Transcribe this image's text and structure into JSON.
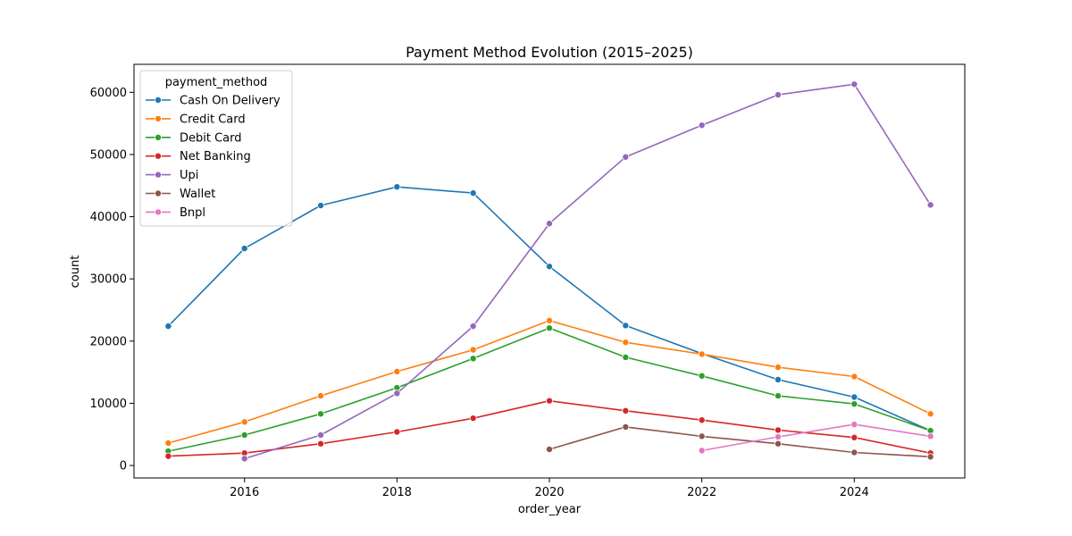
{
  "chart_data": {
    "type": "line",
    "title": "Payment Method Evolution (2015–2025)",
    "xlabel": "order_year",
    "ylabel": "count",
    "xlim": [
      2014.55,
      2025.45
    ],
    "ylim": [
      -2000,
      64500
    ],
    "x_ticks": [
      2016,
      2018,
      2020,
      2022,
      2024
    ],
    "y_ticks": [
      0,
      10000,
      20000,
      30000,
      40000,
      50000,
      60000
    ],
    "grid": false,
    "legend": {
      "title": "payment_method",
      "placement": "top-left"
    },
    "series": [
      {
        "name": "Cash On Delivery",
        "color": "#1f77b4",
        "x": [
          2015,
          2016,
          2017,
          2018,
          2019,
          2020,
          2021,
          2022,
          2023,
          2024,
          2025
        ],
        "values": [
          22400,
          34900,
          41800,
          44800,
          43800,
          32000,
          22500,
          18000,
          13800,
          11000,
          5600
        ]
      },
      {
        "name": "Credit Card",
        "color": "#ff7f0e",
        "x": [
          2015,
          2016,
          2017,
          2018,
          2019,
          2020,
          2021,
          2022,
          2023,
          2024,
          2025
        ],
        "values": [
          3600,
          7000,
          11200,
          15100,
          18600,
          23300,
          19800,
          17900,
          15800,
          14300,
          8300
        ]
      },
      {
        "name": "Debit Card",
        "color": "#2ca02c",
        "x": [
          2015,
          2016,
          2017,
          2018,
          2019,
          2020,
          2021,
          2022,
          2023,
          2024,
          2025
        ],
        "values": [
          2300,
          4900,
          8300,
          12500,
          17200,
          22100,
          17400,
          14400,
          11200,
          9900,
          5600
        ]
      },
      {
        "name": "Net Banking",
        "color": "#d62728",
        "x": [
          2015,
          2016,
          2017,
          2018,
          2019,
          2020,
          2021,
          2022,
          2023,
          2024,
          2025
        ],
        "values": [
          1500,
          2000,
          3500,
          5400,
          7600,
          10400,
          8800,
          7300,
          5700,
          4500,
          2000
        ]
      },
      {
        "name": "Upi",
        "color": "#9467bd",
        "x": [
          2016,
          2017,
          2018,
          2019,
          2020,
          2021,
          2022,
          2023,
          2024,
          2025
        ],
        "values": [
          1100,
          4900,
          11600,
          22400,
          38900,
          49600,
          54700,
          59600,
          61300,
          41900
        ]
      },
      {
        "name": "Wallet",
        "color": "#8c564b",
        "x": [
          2020,
          2021,
          2022,
          2023,
          2024,
          2025
        ],
        "values": [
          2600,
          6200,
          4700,
          3500,
          2100,
          1400
        ]
      },
      {
        "name": "Bnpl",
        "color": "#e377c2",
        "x": [
          2022,
          2023,
          2024,
          2025
        ],
        "values": [
          2400,
          4600,
          6600,
          4700
        ]
      }
    ]
  }
}
